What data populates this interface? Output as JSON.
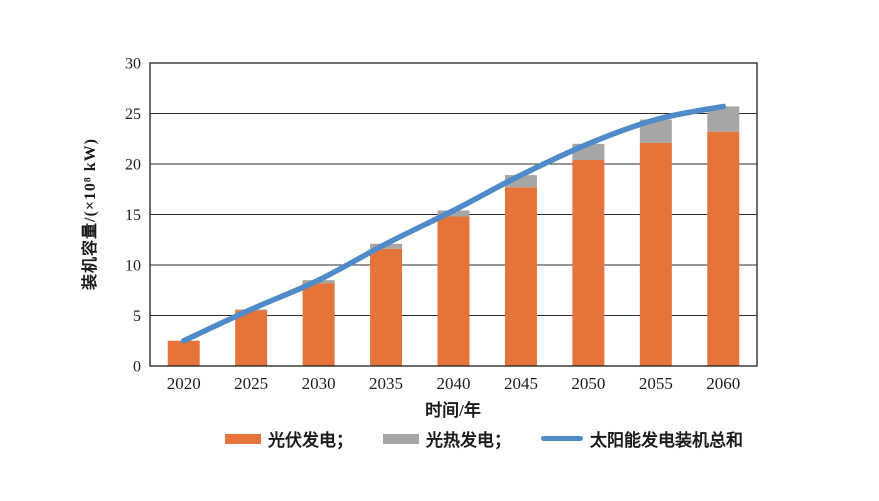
{
  "chart_data": {
    "type": "bar",
    "subtype": "stacked-bars-with-line-overlay",
    "title": "",
    "xlabel": "时间/年",
    "ylabel": "装机容量/(×10⁸ kW)",
    "categories": [
      "2020",
      "2025",
      "2030",
      "2035",
      "2040",
      "2045",
      "2050",
      "2055",
      "2060"
    ],
    "series": [
      {
        "name": "光伏发电",
        "type": "bar",
        "color": "#E5743A",
        "values": [
          2.5,
          5.5,
          8.2,
          11.6,
          14.8,
          17.7,
          20.4,
          22.1,
          23.2
        ]
      },
      {
        "name": "光热发电",
        "type": "bar",
        "color": "#A6A6A6",
        "values": [
          0,
          0.1,
          0.3,
          0.5,
          0.6,
          1.2,
          1.6,
          2.3,
          2.5
        ]
      },
      {
        "name": "太阳能发电装机总和",
        "type": "line",
        "color": "#4E8BC8",
        "values": [
          2.5,
          5.6,
          8.5,
          12.1,
          15.4,
          18.9,
          22.0,
          24.4,
          25.7
        ]
      }
    ],
    "ylim": [
      0,
      30
    ],
    "yticks": [
      0,
      5,
      10,
      15,
      20,
      25,
      30
    ],
    "ytick_labels": [
      "0",
      "5",
      "10",
      "15",
      "20",
      "25",
      "30"
    ],
    "grid": "horizontal",
    "frame": true,
    "legend_position": "bottom",
    "legend_items": [
      {
        "label": "光伏发电；",
        "marker": "bar",
        "color": "#E5743A"
      },
      {
        "label": "光热发电；",
        "marker": "bar",
        "color": "#A6A6A6"
      },
      {
        "label": "太阳能发电装机总和",
        "marker": "line",
        "color": "#4E8BC8"
      }
    ],
    "colors": {
      "axis": "#2e2e2e",
      "grid": "#2e2e2e",
      "tick_text": "#1c1c1c"
    }
  }
}
